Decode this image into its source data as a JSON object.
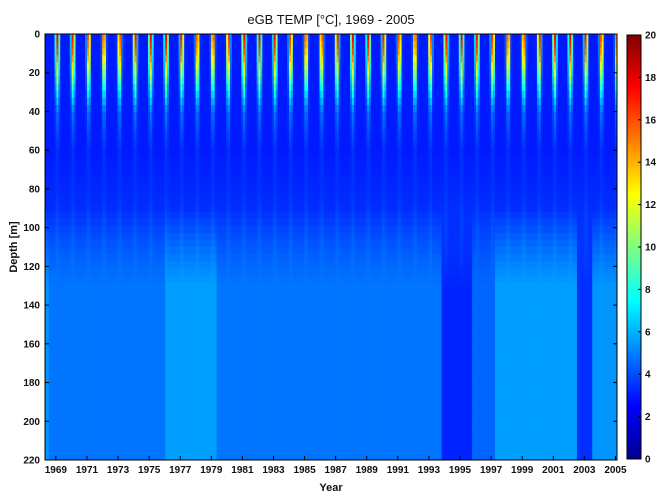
{
  "chart_data": {
    "type": "heatmap",
    "title": "eGB TEMP [°C], 1969 - 2005",
    "xlabel": "Year",
    "ylabel": "Depth [m]",
    "x_range": [
      1968.8,
      2005.6
    ],
    "y_range": [
      0,
      220
    ],
    "y_reversed": true,
    "x_ticks": [
      "1969",
      "1971",
      "1973",
      "1975",
      "1977",
      "1979",
      "1981",
      "1983",
      "1985",
      "1987",
      "1989",
      "1991",
      "1993",
      "1995",
      "1997",
      "1999",
      "2001",
      "2003",
      "2005"
    ],
    "y_ticks": [
      "0",
      "20",
      "40",
      "60",
      "80",
      "100",
      "120",
      "140",
      "160",
      "180",
      "200",
      "220"
    ],
    "colorbar": {
      "min": 0,
      "max": 20,
      "ticks": [
        "0",
        "2",
        "4",
        "6",
        "8",
        "10",
        "12",
        "14",
        "16",
        "18",
        "20"
      ],
      "colormap": "jet"
    },
    "z_unit": "°C",
    "depth_profile_summer": [
      {
        "depth": 0,
        "temp": 18
      },
      {
        "depth": 10,
        "temp": 16
      },
      {
        "depth": 20,
        "temp": 12
      },
      {
        "depth": 30,
        "temp": 8
      },
      {
        "depth": 40,
        "temp": 5
      },
      {
        "depth": 60,
        "temp": 3.5
      },
      {
        "depth": 80,
        "temp": 3.5
      },
      {
        "depth": 120,
        "temp": 4.5
      },
      {
        "depth": 220,
        "temp": 5
      }
    ],
    "depth_profile_winter": [
      {
        "depth": 0,
        "temp": 3
      },
      {
        "depth": 60,
        "temp": 3
      },
      {
        "depth": 220,
        "temp": 5
      }
    ],
    "deep_water_periods": [
      {
        "start": 1969.0,
        "end": 1976.5,
        "temp": 4.8
      },
      {
        "start": 1976.5,
        "end": 1979.8,
        "temp": 5.6
      },
      {
        "start": 1979.8,
        "end": 1994.3,
        "temp": 4.8
      },
      {
        "start": 1994.3,
        "end": 1996.3,
        "temp": 3.2
      },
      {
        "start": 1996.3,
        "end": 1997.7,
        "temp": 4.5
      },
      {
        "start": 1997.7,
        "end": 2003.0,
        "temp": 5.6
      },
      {
        "start": 2003.0,
        "end": 2004.0,
        "temp": 3.4
      },
      {
        "start": 2004.0,
        "end": 2005.6,
        "temp": 5.4
      }
    ]
  }
}
